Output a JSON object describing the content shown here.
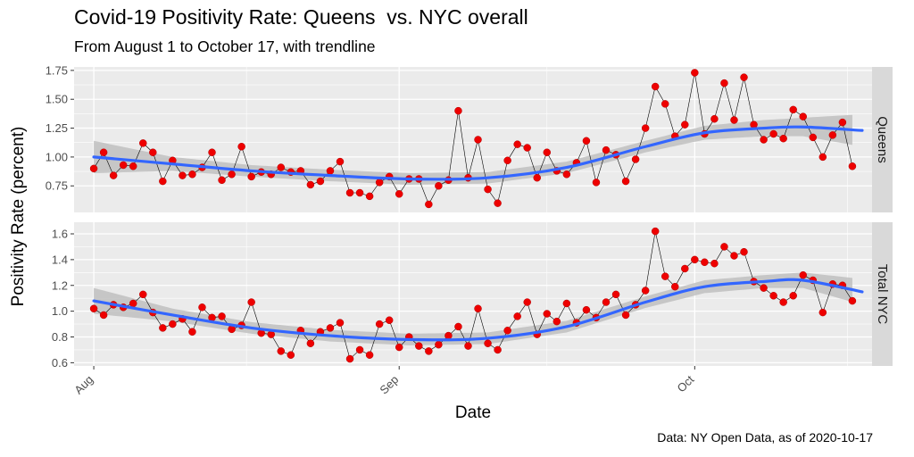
{
  "title": "Covid-19 Positivity Rate: Queens  vs. NYC overall",
  "subtitle": "From August 1 to October 17, with trendline",
  "caption": "Data: NY Open Data, as of 2020-10-17",
  "colors": {
    "panel_bg": "#ebebeb",
    "grid": "#ffffff",
    "strip_bg": "#d9d9d9",
    "point": "#ee0000",
    "trend": "#3366ff",
    "band": "#bdbdbd",
    "line": "#000000"
  },
  "chart_data": {
    "type": "scatter",
    "xlabel": "Date",
    "ylabel": "Positivity Rate (percent)",
    "x_ticks": [
      {
        "label": "Aug",
        "date": "2020-08-01"
      },
      {
        "label": "Sep",
        "date": "2020-09-01"
      },
      {
        "label": "Oct",
        "date": "2020-10-01"
      }
    ],
    "x_start": "2020-08-01",
    "x_end": "2020-10-17",
    "grid": true,
    "series_line": "thin black line connecting points",
    "trendline": "smoothed loess with grey confidence band",
    "facets": [
      {
        "name": "Queens",
        "ylim": [
          0.52,
          1.78
        ],
        "y_ticks": [
          0.75,
          1.0,
          1.25,
          1.5,
          1.75
        ],
        "y_tick_labels": [
          "0.75",
          "1.00",
          "1.25",
          "1.50",
          "1.75"
        ],
        "values": [
          0.9,
          1.04,
          0.84,
          0.93,
          0.92,
          1.12,
          1.04,
          0.79,
          0.97,
          0.84,
          0.85,
          0.91,
          1.04,
          0.8,
          0.85,
          1.09,
          0.83,
          0.87,
          0.85,
          0.91,
          0.87,
          0.88,
          0.76,
          0.79,
          0.88,
          0.96,
          0.69,
          0.69,
          0.66,
          0.78,
          0.83,
          0.68,
          0.81,
          0.81,
          0.59,
          0.75,
          0.8,
          1.4,
          0.82,
          1.15,
          0.72,
          0.6,
          0.97,
          1.11,
          1.08,
          0.82,
          1.04,
          0.88,
          0.85,
          0.95,
          1.14,
          0.78,
          1.06,
          1.02,
          0.79,
          0.98,
          1.25,
          1.61,
          1.46,
          1.18,
          1.28,
          1.73,
          1.2,
          1.33,
          1.64,
          1.32,
          1.69,
          1.28,
          1.15,
          1.2,
          1.16,
          1.41,
          1.35,
          1.17,
          1.0,
          1.19,
          1.3,
          0.92
        ],
        "trend": [
          [
            0,
            1.0
          ],
          [
            8,
            0.94
          ],
          [
            16,
            0.88
          ],
          [
            24,
            0.84
          ],
          [
            32,
            0.81
          ],
          [
            40,
            0.82
          ],
          [
            48,
            0.91
          ],
          [
            56,
            1.09
          ],
          [
            62,
            1.21
          ],
          [
            68,
            1.25
          ],
          [
            72,
            1.26
          ],
          [
            78,
            1.23
          ]
        ],
        "band_half_width": [
          [
            0,
            0.14
          ],
          [
            8,
            0.06
          ],
          [
            16,
            0.05
          ],
          [
            24,
            0.05
          ],
          [
            32,
            0.05
          ],
          [
            40,
            0.05
          ],
          [
            48,
            0.05
          ],
          [
            56,
            0.05
          ],
          [
            62,
            0.06
          ],
          [
            68,
            0.07
          ],
          [
            72,
            0.08
          ],
          [
            78,
            0.14
          ]
        ]
      },
      {
        "name": "Total NYC",
        "ylim": [
          0.575,
          1.69
        ],
        "y_ticks": [
          0.6,
          0.8,
          1.0,
          1.2,
          1.4,
          1.6
        ],
        "y_tick_labels": [
          "0.6",
          "0.8",
          "1.0",
          "1.2",
          "1.4",
          "1.6"
        ],
        "values": [
          1.02,
          0.97,
          1.05,
          1.03,
          1.06,
          1.13,
          0.99,
          0.87,
          0.9,
          0.94,
          0.84,
          1.03,
          0.95,
          0.96,
          0.86,
          0.89,
          1.07,
          0.83,
          0.82,
          0.69,
          0.66,
          0.85,
          0.75,
          0.84,
          0.87,
          0.91,
          0.63,
          0.7,
          0.66,
          0.9,
          0.93,
          0.72,
          0.8,
          0.73,
          0.69,
          0.74,
          0.81,
          0.88,
          0.73,
          1.02,
          0.75,
          0.7,
          0.85,
          0.96,
          1.07,
          0.82,
          0.98,
          0.92,
          1.06,
          0.91,
          1.01,
          0.95,
          1.07,
          1.13,
          0.97,
          1.05,
          1.16,
          1.62,
          1.27,
          1.19,
          1.33,
          1.4,
          1.38,
          1.37,
          1.5,
          1.43,
          1.46,
          1.23,
          1.18,
          1.12,
          1.07,
          1.12,
          1.28,
          1.24,
          0.99,
          1.21,
          1.2,
          1.08
        ],
        "trend": [
          [
            0,
            1.08
          ],
          [
            8,
            0.97
          ],
          [
            16,
            0.87
          ],
          [
            24,
            0.81
          ],
          [
            32,
            0.78
          ],
          [
            40,
            0.79
          ],
          [
            48,
            0.88
          ],
          [
            56,
            1.07
          ],
          [
            62,
            1.19
          ],
          [
            68,
            1.23
          ],
          [
            72,
            1.24
          ],
          [
            78,
            1.15
          ]
        ],
        "band_half_width": [
          [
            0,
            0.1
          ],
          [
            8,
            0.05
          ],
          [
            16,
            0.045
          ],
          [
            24,
            0.045
          ],
          [
            32,
            0.045
          ],
          [
            40,
            0.045
          ],
          [
            48,
            0.045
          ],
          [
            56,
            0.045
          ],
          [
            62,
            0.05
          ],
          [
            68,
            0.05
          ],
          [
            72,
            0.06
          ],
          [
            78,
            0.1
          ]
        ]
      }
    ]
  }
}
